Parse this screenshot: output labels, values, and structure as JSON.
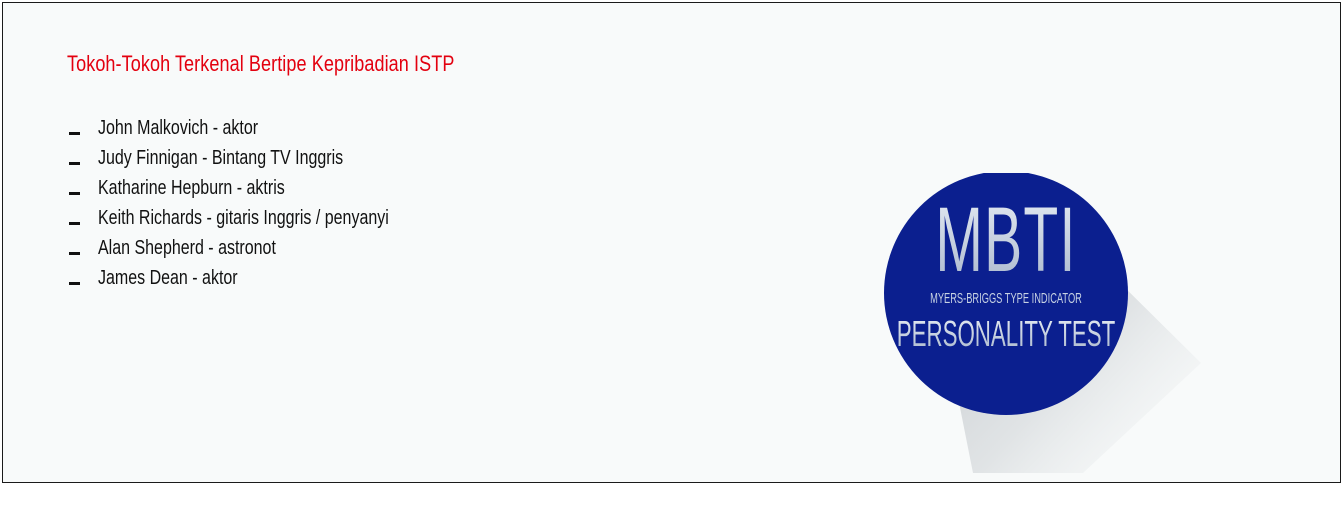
{
  "title": "Tokoh-Tokoh Terkenal Bertipe Kepribadian ISTP",
  "people": [
    "John Malkovich - aktor",
    "Judy Finnigan - Bintang TV Inggris",
    "Katharine Hepburn - aktris",
    "Keith Richards - gitaris Inggris / penyanyi",
    "Alan Shepherd - astronot",
    "James Dean - aktor"
  ],
  "badge": {
    "main": "MBTI",
    "subtitle": "MYERS-BRIGGS TYPE INDICATOR",
    "tagline": "PERSONALITY TEST",
    "circle_color": "#0b1f8f",
    "text_color": "#c7d2e3"
  },
  "colors": {
    "title": "#e3000f",
    "background": "#f8fafa",
    "border": "#1a1a1a"
  }
}
